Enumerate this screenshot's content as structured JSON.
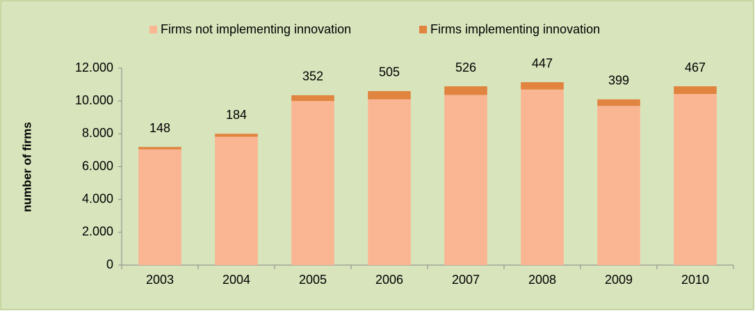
{
  "chart_data": {
    "type": "stacked_bar",
    "categories": [
      "2003",
      "2004",
      "2005",
      "2006",
      "2007",
      "2008",
      "2009",
      "2010"
    ],
    "series": [
      {
        "name": "Firms not implementing innovation",
        "color": "#fab593",
        "values": [
          7050,
          7820,
          10000,
          10100,
          10370,
          10700,
          9700,
          10430
        ]
      },
      {
        "name": "Firms implementing innovation",
        "color": "#e0843f",
        "values": [
          148,
          184,
          352,
          505,
          526,
          447,
          399,
          467
        ]
      }
    ],
    "y_label": "number of firms",
    "ylim": [
      0,
      12000
    ],
    "yticks": [
      0,
      {
        "value": 2000,
        "label": "2.000"
      },
      {
        "value": 4000,
        "label": "4.000"
      },
      {
        "value": 6000,
        "label": "6.000"
      },
      {
        "value": 8000,
        "label": "8.000"
      },
      {
        "value": 10000,
        "label": "10.000"
      },
      {
        "value": 12000,
        "label": "12.000"
      }
    ],
    "grid": false,
    "legend": "top"
  }
}
